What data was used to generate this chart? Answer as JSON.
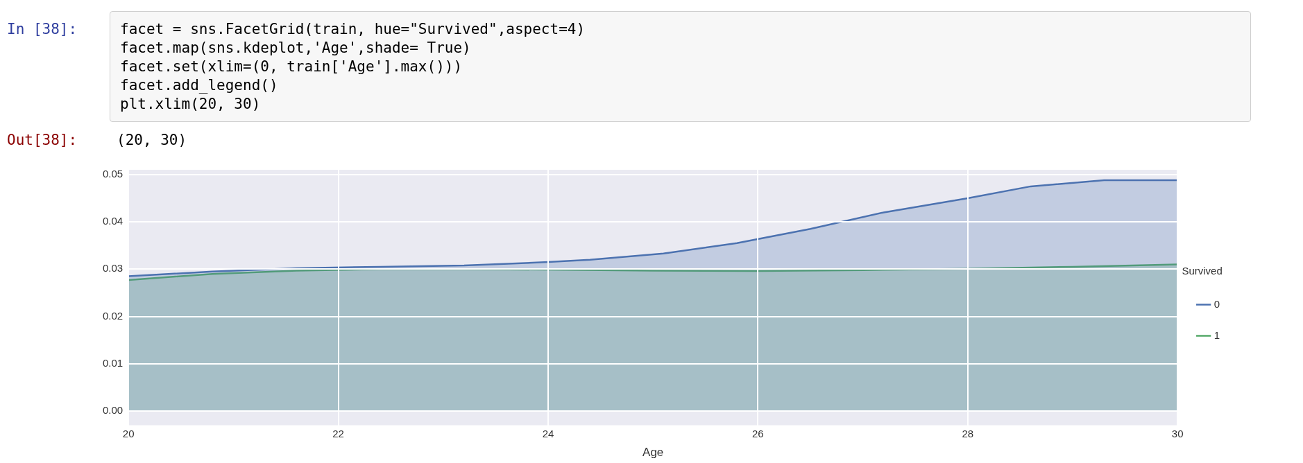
{
  "chart_data": {
    "type": "area",
    "xlabel": "Age",
    "legend_title": "Survived",
    "legend": "right",
    "grid": true,
    "marker": "none",
    "line_style": "solid",
    "xlim": [
      20,
      30
    ],
    "xticks": [
      20,
      22,
      24,
      26,
      28,
      30
    ],
    "ylim": [
      -0.003,
      0.051
    ],
    "yticks": [
      {
        "value": 0,
        "label": "0.00"
      },
      {
        "value": 0.01,
        "label": "0.01"
      },
      {
        "value": 0.02,
        "label": "0.02"
      },
      {
        "value": 0.03,
        "label": "0.03"
      },
      {
        "value": 0.04,
        "label": "0.04"
      },
      {
        "value": 0.05,
        "label": "0.05"
      }
    ],
    "series": [
      {
        "name": "0",
        "color": "#4c72b0",
        "x": [
          20,
          20.8,
          21.6,
          22.4,
          23.2,
          24,
          24.4,
          25.1,
          25.8,
          26.5,
          27.2,
          28,
          28.6,
          29.3,
          30
        ],
        "values": [
          0.0285,
          0.0295,
          0.0302,
          0.0305,
          0.0308,
          0.0315,
          0.032,
          0.0333,
          0.0355,
          0.0385,
          0.042,
          0.045,
          0.0475,
          0.0488,
          0.0488
        ]
      },
      {
        "name": "1",
        "color": "#55a868",
        "x": [
          20,
          20.8,
          21.6,
          22.4,
          23.2,
          24,
          25,
          26,
          27,
          28,
          29,
          30
        ],
        "values": [
          0.0277,
          0.029,
          0.0297,
          0.03,
          0.03,
          0.0299,
          0.0297,
          0.0296,
          0.0298,
          0.0301,
          0.0305,
          0.031
        ]
      }
    ],
    "annotations": [
      "In [38]:",
      "facet = sns.FacetGrid(train, hue=\"Survived\",aspect=4)",
      "facet.map(sns.kdeplot,'Age',shade= True)",
      "facet.set(xlim=(0, train['Age'].max()))",
      "facet.add_legend()",
      "plt.xlim(20, 30)",
      "Out[38]:",
      "(20, 30)"
    ]
  }
}
